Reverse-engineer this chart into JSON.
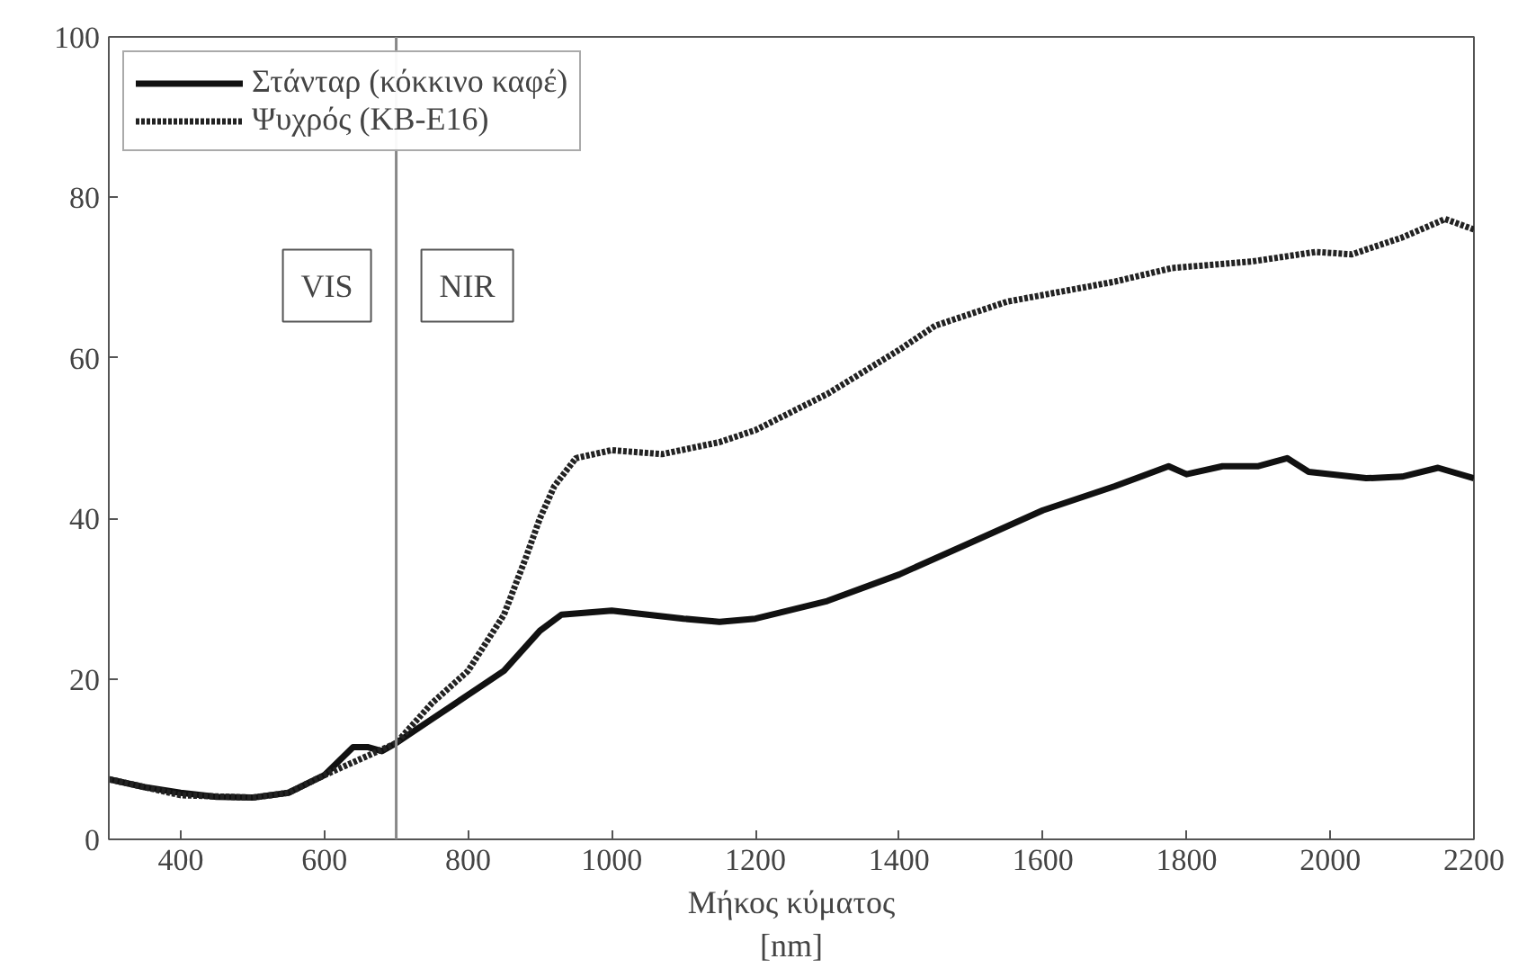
{
  "chart_data": {
    "type": "line",
    "xlabel": "Μήκος κύματος\n[nm]",
    "xlim": [
      300,
      2200
    ],
    "xticks": [
      400,
      600,
      800,
      1000,
      1200,
      1400,
      1600,
      1800,
      2000,
      2200
    ],
    "ylim": [
      0,
      100
    ],
    "yticks": [
      0,
      20,
      40,
      60,
      80,
      100
    ],
    "grid": false,
    "legend": "top left",
    "series": [
      {
        "name": "Στάνταρ (κόκκινο καφέ)",
        "color": "#111111",
        "line_style": "solid",
        "x": [
          300,
          350,
          400,
          450,
          500,
          550,
          600,
          640,
          660,
          680,
          700,
          750,
          800,
          850,
          900,
          930,
          1000,
          1100,
          1150,
          1200,
          1300,
          1400,
          1500,
          1600,
          1700,
          1775,
          1800,
          1850,
          1900,
          1940,
          1970,
          2050,
          2100,
          2150,
          2200
        ],
        "values": [
          7.5,
          6.5,
          5.8,
          5.3,
          5.2,
          5.8,
          8,
          11.5,
          11.5,
          11,
          12,
          15,
          18,
          21,
          26,
          28,
          28.5,
          27.5,
          27.1,
          27.5,
          29.7,
          33,
          37,
          41,
          44,
          46.5,
          45.5,
          46.5,
          46.5,
          47.5,
          45.8,
          45,
          45.2,
          46.3,
          45
        ]
      },
      {
        "name": "Ψυχρός (KB-E16)",
        "color": "#222222",
        "line_style": "dotted",
        "x": [
          300,
          400,
          500,
          550,
          600,
          650,
          700,
          750,
          800,
          850,
          880,
          900,
          920,
          950,
          1000,
          1070,
          1150,
          1200,
          1300,
          1400,
          1450,
          1550,
          1700,
          1780,
          1890,
          1980,
          2030,
          2100,
          2160,
          2200
        ],
        "values": [
          7.5,
          5.5,
          5.2,
          5.8,
          8,
          10,
          12,
          17,
          21,
          28,
          35,
          40,
          44,
          47.5,
          48.5,
          48,
          49.5,
          51,
          55.5,
          61,
          64,
          67,
          69.5,
          71.2,
          72,
          73.2,
          72.9,
          75,
          77.3,
          76
        ]
      }
    ],
    "ref_lines": [
      {
        "axis": "x",
        "value": 700,
        "color": "#888888"
      }
    ],
    "annotations": [
      "VIS",
      "NIR"
    ]
  }
}
